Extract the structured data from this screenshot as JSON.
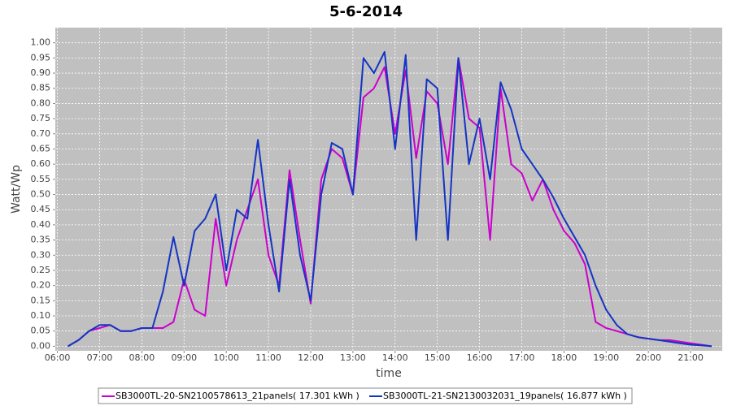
{
  "chart_data": {
    "type": "line",
    "title": "5-6-2014",
    "x_label": "time",
    "y_label": "Watt/Wp",
    "x": [
      6.25,
      6.5,
      6.75,
      7,
      7.25,
      7.5,
      7.75,
      8,
      8.25,
      8.5,
      8.75,
      9,
      9.25,
      9.5,
      9.75,
      10,
      10.25,
      10.5,
      10.75,
      11,
      11.25,
      11.5,
      11.75,
      12,
      12.25,
      12.5,
      12.75,
      13,
      13.25,
      13.5,
      13.75,
      14,
      14.25,
      14.5,
      14.75,
      15,
      15.25,
      15.5,
      15.75,
      16,
      16.25,
      16.5,
      16.75,
      17,
      17.25,
      17.5,
      17.75,
      18,
      18.25,
      18.5,
      18.75,
      19,
      19.25,
      19.5,
      19.75,
      20,
      20.25,
      20.5,
      20.75,
      21,
      21.25,
      21.5
    ],
    "series": [
      {
        "name": "SB3000TL-20-SN2100578613_21panels( 17.301 kWh )",
        "color": "#cc00cc",
        "values": [
          0,
          0.02,
          0.05,
          0.06,
          0.07,
          0.05,
          0.05,
          0.06,
          0.06,
          0.06,
          0.08,
          0.22,
          0.12,
          0.1,
          0.42,
          0.2,
          0.35,
          0.45,
          0.55,
          0.3,
          0.2,
          0.58,
          0.35,
          0.14,
          0.55,
          0.65,
          0.62,
          0.5,
          0.82,
          0.85,
          0.92,
          0.7,
          0.91,
          0.62,
          0.84,
          0.8,
          0.6,
          0.95,
          0.75,
          0.72,
          0.35,
          0.85,
          0.6,
          0.57,
          0.48,
          0.55,
          0.45,
          0.38,
          0.34,
          0.27,
          0.08,
          0.06,
          0.05,
          0.04,
          0.03,
          0.025,
          0.02,
          0.02,
          0.015,
          0.01,
          0.005,
          0
        ]
      },
      {
        "name": "SB3000TL-21-SN2130032031_19panels( 16.877 kWh )",
        "color": "#1434c4",
        "values": [
          0,
          0.02,
          0.05,
          0.07,
          0.07,
          0.05,
          0.05,
          0.06,
          0.06,
          0.18,
          0.36,
          0.2,
          0.38,
          0.42,
          0.5,
          0.25,
          0.45,
          0.42,
          0.68,
          0.4,
          0.18,
          0.55,
          0.3,
          0.15,
          0.5,
          0.67,
          0.65,
          0.5,
          0.95,
          0.9,
          0.97,
          0.65,
          0.96,
          0.35,
          0.88,
          0.85,
          0.35,
          0.95,
          0.6,
          0.75,
          0.55,
          0.87,
          0.78,
          0.65,
          0.6,
          0.55,
          0.49,
          0.42,
          0.36,
          0.3,
          0.2,
          0.12,
          0.07,
          0.04,
          0.03,
          0.025,
          0.02,
          0.015,
          0.01,
          0.005,
          0.003,
          0
        ]
      }
    ],
    "xlim": [
      5.95,
      21.75
    ],
    "xticks": [
      {
        "value": 6,
        "label": "06:00"
      },
      {
        "value": 7,
        "label": "07:00"
      },
      {
        "value": 8,
        "label": "08:00"
      },
      {
        "value": 9,
        "label": "09:00"
      },
      {
        "value": 10,
        "label": "10:00"
      },
      {
        "value": 11,
        "label": "11:00"
      },
      {
        "value": 12,
        "label": "12:00"
      },
      {
        "value": 13,
        "label": "13:00"
      },
      {
        "value": 14,
        "label": "14:00"
      },
      {
        "value": 15,
        "label": "15:00"
      },
      {
        "value": 16,
        "label": "16:00"
      },
      {
        "value": 17,
        "label": "17:00"
      },
      {
        "value": 18,
        "label": "18:00"
      },
      {
        "value": 19,
        "label": "19:00"
      },
      {
        "value": 20,
        "label": "20:00"
      },
      {
        "value": 21,
        "label": "21:00"
      }
    ],
    "ylim": [
      -0.015,
      1.05
    ],
    "yticks": [
      {
        "value": 0,
        "label": "0.00"
      },
      {
        "value": 0.05,
        "label": "0.05"
      },
      {
        "value": 0.1,
        "label": "0.10"
      },
      {
        "value": 0.15,
        "label": "0.15"
      },
      {
        "value": 0.2,
        "label": "0.20"
      },
      {
        "value": 0.25,
        "label": "0.25"
      },
      {
        "value": 0.3,
        "label": "0.30"
      },
      {
        "value": 0.35,
        "label": "0.35"
      },
      {
        "value": 0.4,
        "label": "0.40"
      },
      {
        "value": 0.45,
        "label": "0.45"
      },
      {
        "value": 0.5,
        "label": "0.50"
      },
      {
        "value": 0.55,
        "label": "0.55"
      },
      {
        "value": 0.6,
        "label": "0.60"
      },
      {
        "value": 0.65,
        "label": "0.65"
      },
      {
        "value": 0.7,
        "label": "0.70"
      },
      {
        "value": 0.75,
        "label": "0.75"
      },
      {
        "value": 0.8,
        "label": "0.80"
      },
      {
        "value": 0.85,
        "label": "0.85"
      },
      {
        "value": 0.9,
        "label": "0.90"
      },
      {
        "value": 0.95,
        "label": "0.95"
      },
      {
        "value": 1,
        "label": "1.00"
      }
    ],
    "grid": true,
    "legend": "bottom"
  }
}
